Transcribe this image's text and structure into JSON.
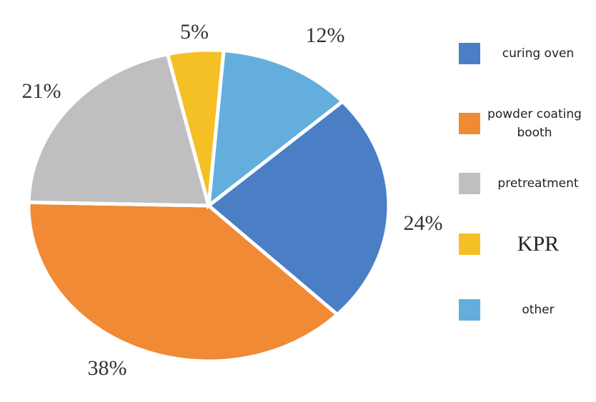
{
  "chart_data": {
    "type": "pie",
    "categories": [
      "curing oven",
      "powder coating booth",
      "pretreatment",
      "KPR",
      "other"
    ],
    "values": [
      24,
      38,
      21,
      5,
      12
    ],
    "value_labels": [
      "24%",
      "38%",
      "21%",
      "5%",
      "12%"
    ],
    "colors": [
      "#4a7fc5",
      "#f08a35",
      "#bfbfbf",
      "#f5c026",
      "#63aedd"
    ]
  }
}
